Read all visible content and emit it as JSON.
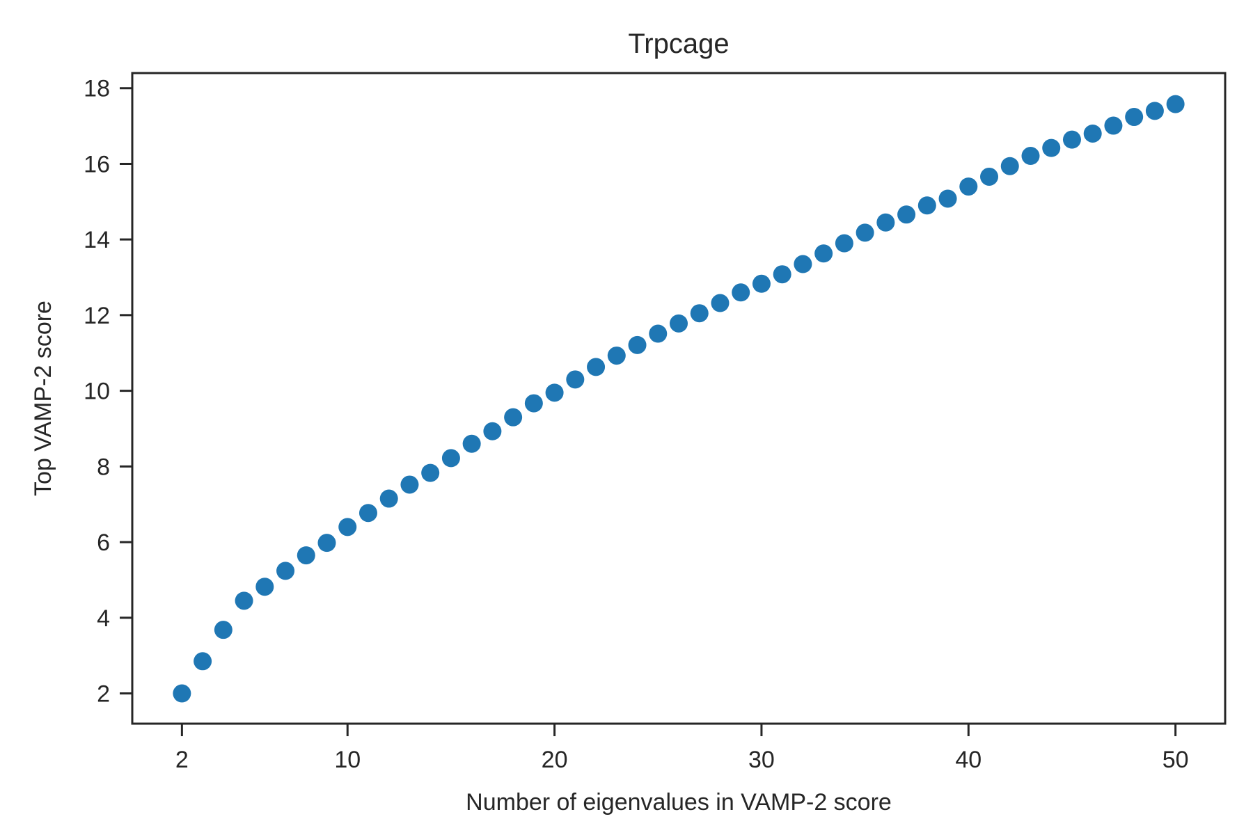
{
  "chart_data": {
    "type": "scatter",
    "title": "Trpcage",
    "xlabel": "Number of eigenvalues in VAMP-2 score",
    "ylabel": "Top VAMP-2 score",
    "xlim": [
      -0.4,
      52.4
    ],
    "ylim": [
      1.2,
      18.4
    ],
    "xticks": [
      2,
      10,
      20,
      30,
      40,
      50
    ],
    "yticks": [
      2,
      4,
      6,
      8,
      10,
      12,
      14,
      16,
      18
    ],
    "grid": false,
    "legend": "none",
    "marker_color": "#1f77b4",
    "series": [
      {
        "x": [
          2,
          3,
          4,
          5,
          6,
          7,
          8,
          9,
          10,
          11,
          12,
          13,
          14,
          15,
          16,
          17,
          18,
          19,
          20,
          21,
          22,
          23,
          24,
          25,
          26,
          27,
          28,
          29,
          30,
          31,
          32,
          33,
          34,
          35,
          36,
          37,
          38,
          39,
          40,
          41,
          42,
          43,
          44,
          45,
          46,
          47,
          48,
          49,
          50
        ],
        "y": [
          2.0,
          2.85,
          3.68,
          4.45,
          4.82,
          5.24,
          5.65,
          5.98,
          6.4,
          6.77,
          7.15,
          7.52,
          7.83,
          8.22,
          8.6,
          8.93,
          9.3,
          9.67,
          9.95,
          10.3,
          10.63,
          10.93,
          11.21,
          11.51,
          11.78,
          12.05,
          12.32,
          12.6,
          12.83,
          13.08,
          13.35,
          13.63,
          13.9,
          14.18,
          14.45,
          14.66,
          14.9,
          15.08,
          15.4,
          15.66,
          15.94,
          16.21,
          16.42,
          16.64,
          16.8,
          17.01,
          17.24,
          17.4,
          17.58
        ]
      }
    ]
  }
}
